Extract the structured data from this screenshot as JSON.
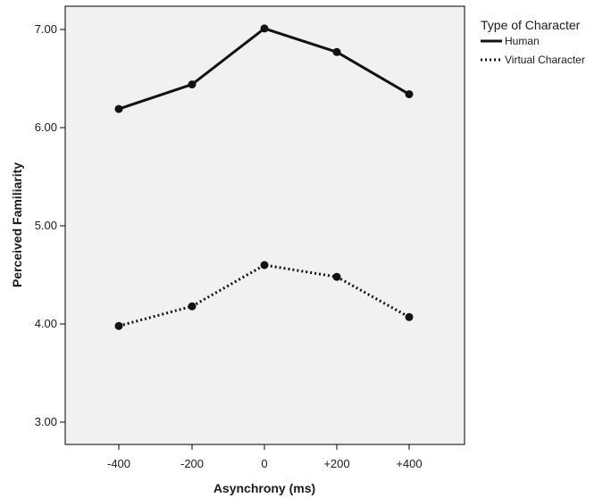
{
  "chart_data": {
    "type": "line",
    "xlabel": "Asynchrony (ms)",
    "ylabel": "Perceived Familiarity",
    "categories": [
      "-400",
      "-200",
      "0",
      "+200",
      "+400"
    ],
    "ylim": [
      2.85,
      7.2
    ],
    "yticks": [
      "3.00",
      "4.00",
      "5.00",
      "6.00",
      "7.00"
    ],
    "ytick_values": [
      3,
      4,
      5,
      6,
      7
    ],
    "grid": false,
    "legend": {
      "title": "Type of Character",
      "position": "right-outside-top"
    },
    "series": [
      {
        "name": "Human",
        "style": "solid",
        "color": "#111111",
        "values": [
          6.19,
          6.44,
          7.01,
          6.77,
          6.34
        ]
      },
      {
        "name": "Virtual Character",
        "style": "dotted",
        "color": "#111111",
        "values": [
          3.98,
          4.18,
          4.6,
          4.48,
          4.07
        ]
      }
    ],
    "plot_background": "#f1f1f1"
  }
}
